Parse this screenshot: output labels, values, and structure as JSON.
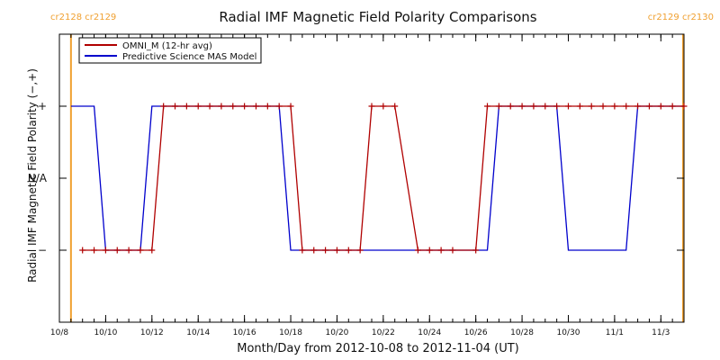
{
  "colors": {
    "omni": "#b00000",
    "mas": "#0000cc",
    "carrington": "#f0a030",
    "axis": "#000000"
  },
  "chart_data": {
    "type": "line",
    "title": "Radial IMF Magnetic Field Polarity Comparisons",
    "xlabel": "Month/Day from 2012-10-08 to 2012-11-04 (UT)",
    "ylabel": "Radial IMF Magnetic Field Polarity (−,+)",
    "xlim": [
      "2012-10-08T00:00",
      "2012-11-04T00:00"
    ],
    "ylim": [
      -2,
      2
    ],
    "y_ticks": [
      {
        "value": 1,
        "label": "+"
      },
      {
        "value": 0,
        "label": "N/A"
      },
      {
        "value": -1,
        "label": "−"
      }
    ],
    "x_ticks": [
      {
        "value": "2012-10-08",
        "label": "10/8"
      },
      {
        "value": "2012-10-10",
        "label": "10/10"
      },
      {
        "value": "2012-10-12",
        "label": "10/12"
      },
      {
        "value": "2012-10-14",
        "label": "10/14"
      },
      {
        "value": "2012-10-16",
        "label": "10/16"
      },
      {
        "value": "2012-10-18",
        "label": "10/18"
      },
      {
        "value": "2012-10-20",
        "label": "10/20"
      },
      {
        "value": "2012-10-22",
        "label": "10/22"
      },
      {
        "value": "2012-10-24",
        "label": "10/24"
      },
      {
        "value": "2012-10-26",
        "label": "10/26"
      },
      {
        "value": "2012-10-28",
        "label": "10/28"
      },
      {
        "value": "2012-10-30",
        "label": "10/30"
      },
      {
        "value": "2012-11-01",
        "label": "11/1"
      },
      {
        "value": "2012-11-03",
        "label": "11/3"
      }
    ],
    "carrington_markers": [
      {
        "x": "2012-10-08T12:00",
        "label": "cr2128 cr2129"
      },
      {
        "x": "2012-11-03T23:00",
        "label": "cr2129 cr2130"
      }
    ],
    "legend_position": "top-left",
    "series": [
      {
        "name": "OMNI_M (12-hr avg)",
        "markers": true,
        "points": [
          {
            "x": "2012-10-09T00:00",
            "y": -1
          },
          {
            "x": "2012-10-09T12:00",
            "y": -1
          },
          {
            "x": "2012-10-10T00:00",
            "y": -1
          },
          {
            "x": "2012-10-10T12:00",
            "y": -1
          },
          {
            "x": "2012-10-11T00:00",
            "y": -1
          },
          {
            "x": "2012-10-11T12:00",
            "y": -1
          },
          {
            "x": "2012-10-12T00:00",
            "y": -1
          },
          {
            "x": "2012-10-12T12:00",
            "y": 1
          },
          {
            "x": "2012-10-13T00:00",
            "y": 1
          },
          {
            "x": "2012-10-13T12:00",
            "y": 1
          },
          {
            "x": "2012-10-14T00:00",
            "y": 1
          },
          {
            "x": "2012-10-14T12:00",
            "y": 1
          },
          {
            "x": "2012-10-15T00:00",
            "y": 1
          },
          {
            "x": "2012-10-15T12:00",
            "y": 1
          },
          {
            "x": "2012-10-16T00:00",
            "y": 1
          },
          {
            "x": "2012-10-16T12:00",
            "y": 1
          },
          {
            "x": "2012-10-17T00:00",
            "y": 1
          },
          {
            "x": "2012-10-17T12:00",
            "y": 1
          },
          {
            "x": "2012-10-18T00:00",
            "y": 1
          },
          {
            "x": "2012-10-18T12:00",
            "y": -1
          },
          {
            "x": "2012-10-19T00:00",
            "y": -1
          },
          {
            "x": "2012-10-19T12:00",
            "y": -1
          },
          {
            "x": "2012-10-20T00:00",
            "y": -1
          },
          {
            "x": "2012-10-20T12:00",
            "y": -1
          },
          {
            "x": "2012-10-21T00:00",
            "y": -1
          },
          {
            "x": "2012-10-21T12:00",
            "y": 1
          },
          {
            "x": "2012-10-22T00:00",
            "y": 1
          },
          {
            "x": "2012-10-22T12:00",
            "y": 1
          },
          {
            "x": "2012-10-23T12:00",
            "y": -1
          },
          {
            "x": "2012-10-24T00:00",
            "y": -1
          },
          {
            "x": "2012-10-24T12:00",
            "y": -1
          },
          {
            "x": "2012-10-25T00:00",
            "y": -1
          },
          {
            "x": "2012-10-26T00:00",
            "y": -1
          },
          {
            "x": "2012-10-26T12:00",
            "y": 1
          },
          {
            "x": "2012-10-27T00:00",
            "y": 1
          },
          {
            "x": "2012-10-27T12:00",
            "y": 1
          },
          {
            "x": "2012-10-28T00:00",
            "y": 1
          },
          {
            "x": "2012-10-28T12:00",
            "y": 1
          },
          {
            "x": "2012-10-29T00:00",
            "y": 1
          },
          {
            "x": "2012-10-29T12:00",
            "y": 1
          },
          {
            "x": "2012-10-30T00:00",
            "y": 1
          },
          {
            "x": "2012-10-30T12:00",
            "y": 1
          },
          {
            "x": "2012-10-31T00:00",
            "y": 1
          },
          {
            "x": "2012-10-31T12:00",
            "y": 1
          },
          {
            "x": "2012-11-01T00:00",
            "y": 1
          },
          {
            "x": "2012-11-01T12:00",
            "y": 1
          },
          {
            "x": "2012-11-02T00:00",
            "y": 1
          },
          {
            "x": "2012-11-02T12:00",
            "y": 1
          },
          {
            "x": "2012-11-03T00:00",
            "y": 1
          },
          {
            "x": "2012-11-03T12:00",
            "y": 1
          },
          {
            "x": "2012-11-04T00:00",
            "y": 1
          }
        ]
      },
      {
        "name": "Predictive Science MAS Model",
        "markers": false,
        "points": [
          {
            "x": "2012-10-08T12:00",
            "y": 1
          },
          {
            "x": "2012-10-09T12:00",
            "y": 1
          },
          {
            "x": "2012-10-10T00:00",
            "y": -1
          },
          {
            "x": "2012-10-11T12:00",
            "y": -1
          },
          {
            "x": "2012-10-12T00:00",
            "y": 1
          },
          {
            "x": "2012-10-17T12:00",
            "y": 1
          },
          {
            "x": "2012-10-18T00:00",
            "y": -1
          },
          {
            "x": "2012-10-26T12:00",
            "y": -1
          },
          {
            "x": "2012-10-27T00:00",
            "y": 1
          },
          {
            "x": "2012-10-29T12:00",
            "y": 1
          },
          {
            "x": "2012-10-30T00:00",
            "y": -1
          },
          {
            "x": "2012-11-01T12:00",
            "y": -1
          },
          {
            "x": "2012-11-02T00:00",
            "y": 1
          },
          {
            "x": "2012-11-04T00:00",
            "y": 1
          }
        ]
      }
    ]
  }
}
